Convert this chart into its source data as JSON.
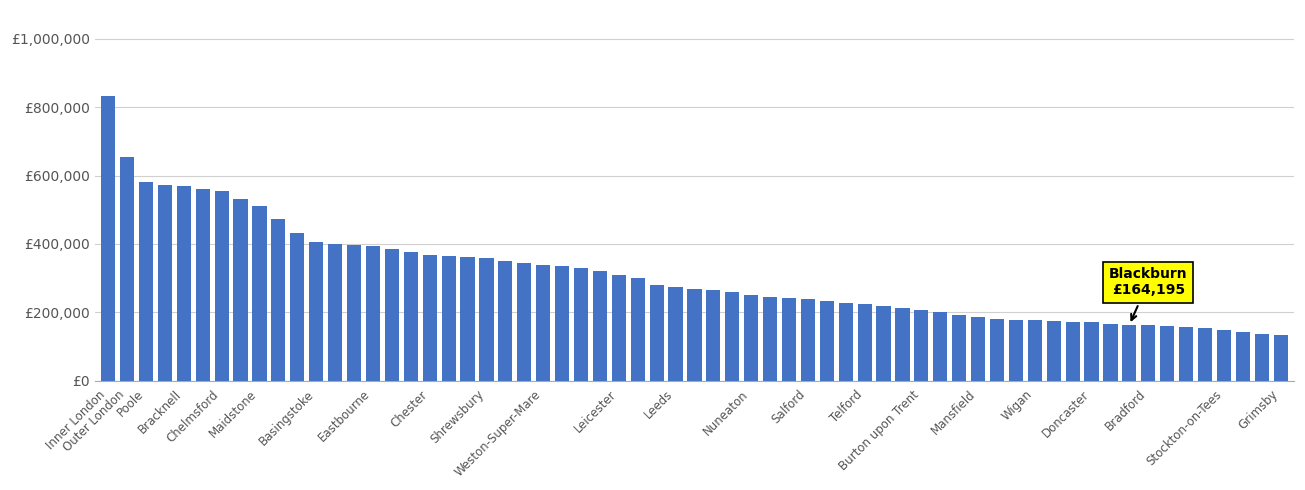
{
  "bar_color": "#4472C4",
  "highlight_label": "Blackburn\n£164,195",
  "highlight_index": 54,
  "ytick_labels": [
    "£0",
    "£200,000",
    "£400,000",
    "£600,000",
    "£800,000",
    "£1,000,000"
  ],
  "ytick_values": [
    0,
    200000,
    400000,
    600000,
    800000,
    1000000
  ],
  "background_color": "#ffffff",
  "grid_color": "#d0d0d0",
  "all_values": [
    832000,
    655000,
    582000,
    572000,
    568000,
    560000,
    555000,
    530000,
    510000,
    472000,
    432000,
    405000,
    400000,
    398000,
    393000,
    385000,
    378000,
    368000,
    365000,
    362000,
    358000,
    350000,
    345000,
    340000,
    335000,
    330000,
    320000,
    310000,
    300000,
    280000,
    275000,
    270000,
    265000,
    260000,
    250000,
    245000,
    242000,
    238000,
    233000,
    228000,
    225000,
    218000,
    212000,
    207000,
    202000,
    192000,
    188000,
    182000,
    178000,
    177000,
    175000,
    173000,
    171000,
    167000,
    164195,
    163000,
    161000,
    158000,
    154000,
    150000,
    142000,
    138000,
    133000
  ],
  "tick_positions": [
    0,
    1,
    2,
    4,
    6,
    8,
    11,
    14,
    17,
    20,
    23,
    27,
    30,
    34,
    37,
    40,
    43,
    46,
    49,
    52,
    55,
    59,
    62
  ],
  "tick_labels": [
    "Inner London",
    "Outer London",
    "Poole",
    "Bracknell",
    "Chelmsford",
    "Maidstone",
    "Basingstoke",
    "Eastbourne",
    "Chester",
    "Shrewsbury",
    "Weston-Super-Mare",
    "Leicester",
    "Leeds",
    "Nuneaton",
    "Salford",
    "Telford",
    "Burton upon Trent",
    "Mansfield",
    "Wigan",
    "Doncaster",
    "Bradford",
    "Stockton-on-Tees",
    "Grimsby"
  ]
}
